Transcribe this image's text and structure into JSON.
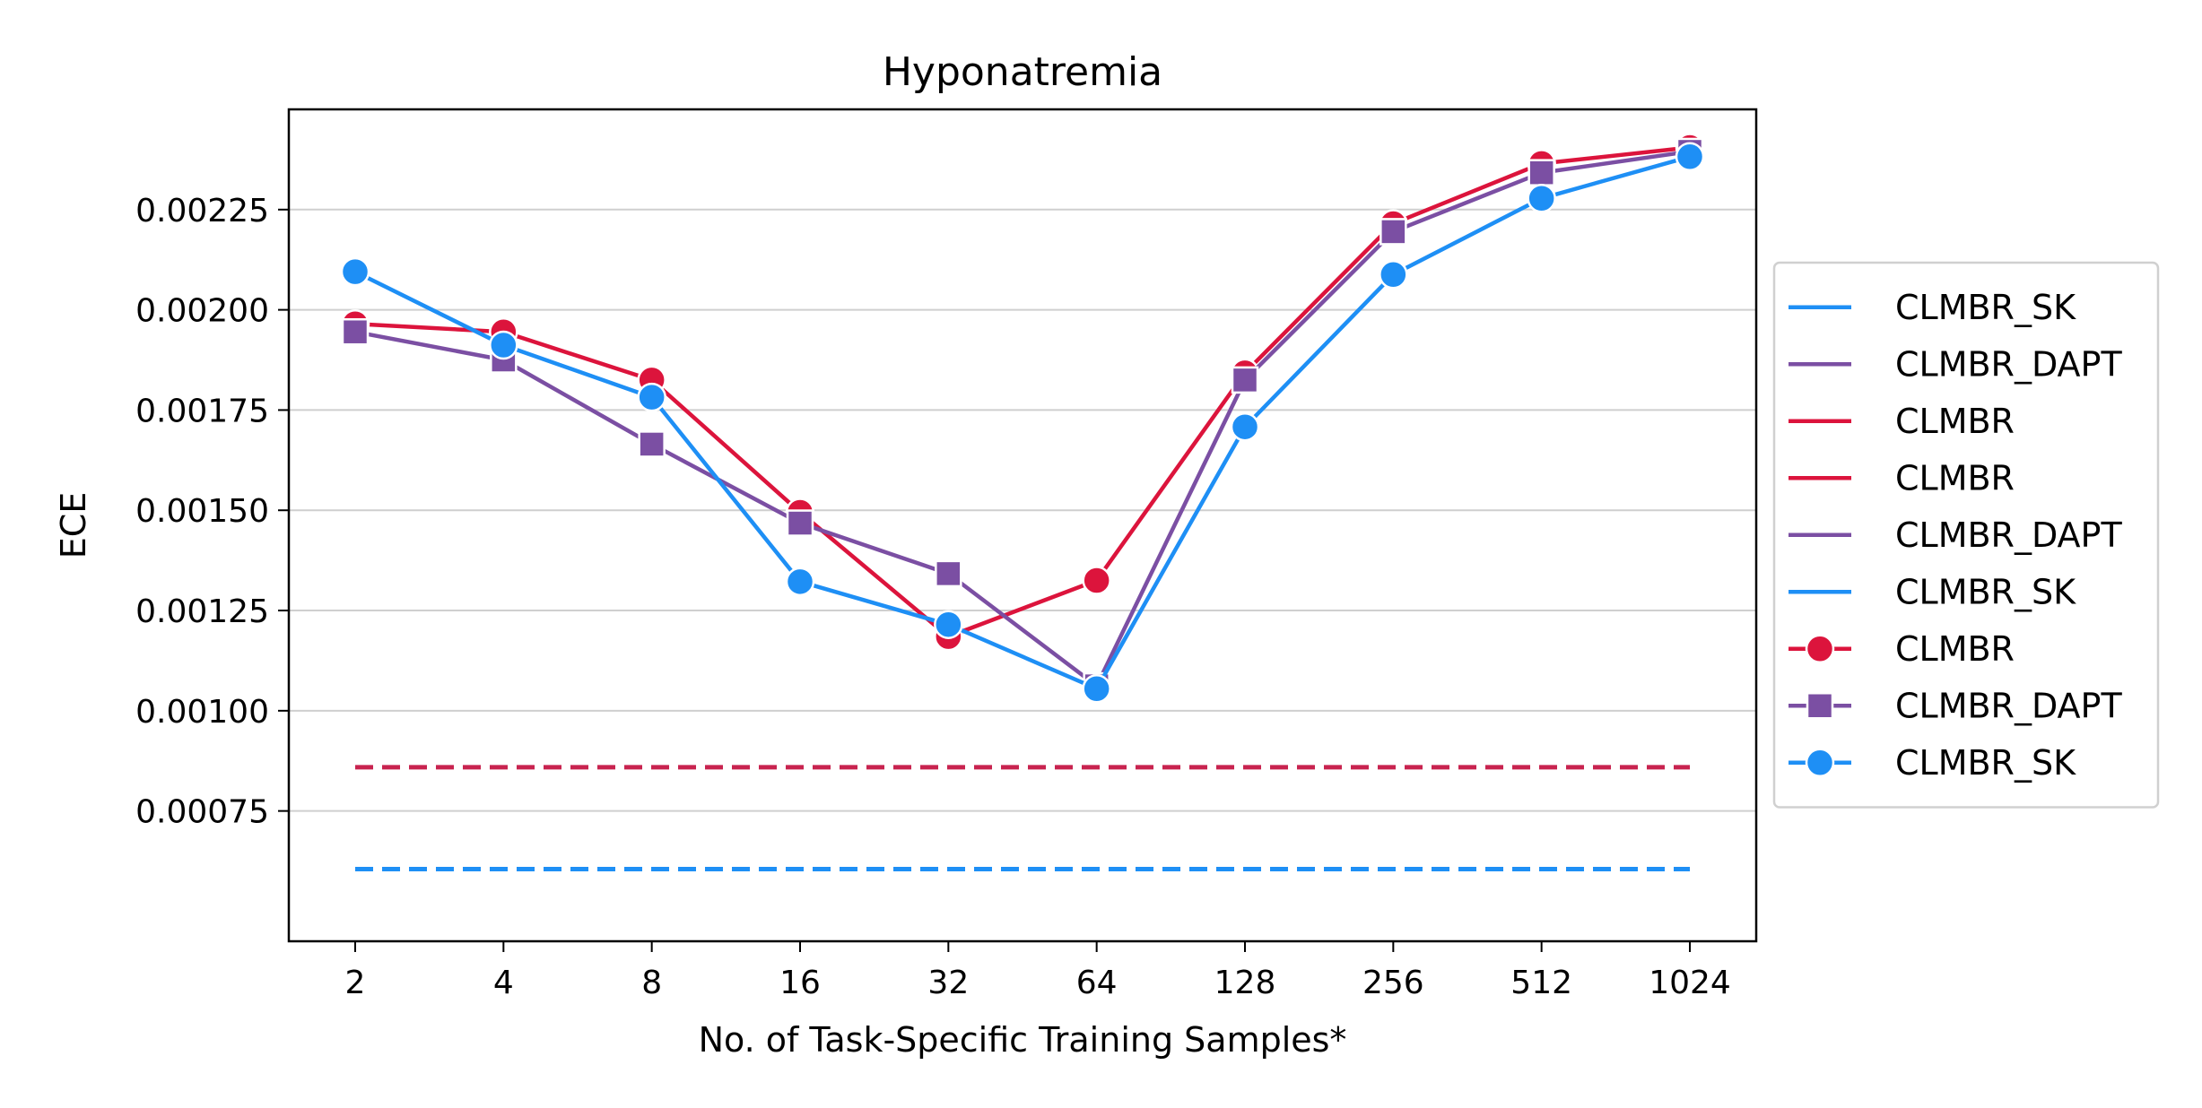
{
  "chart_data": {
    "type": "line",
    "title": "Hyponatremia",
    "xlabel": "No. of Task-Specific Training Samples*",
    "ylabel": "ECE",
    "categories": [
      "2",
      "4",
      "8",
      "16",
      "32",
      "64",
      "128",
      "256",
      "512",
      "1024"
    ],
    "ylim": [
      0.000425,
      0.0025
    ],
    "yticks": [
      "0.00075",
      "0.00100",
      "0.00125",
      "0.00150",
      "0.00175",
      "0.00200",
      "0.00225"
    ],
    "ytick_values": [
      0.00075,
      0.001,
      0.00125,
      0.0015,
      0.00175,
      0.002,
      0.00225
    ],
    "grid": "horizontal",
    "legend_position": "right, outside plot",
    "baselines": [
      {
        "series_ref": "CLMBR",
        "value": 0.000859,
        "color": "#c8234f",
        "style": "dashed"
      },
      {
        "series_ref": "CLMBR_SK",
        "value": 0.000605,
        "color": "#1e8ff5",
        "style": "dashed"
      }
    ],
    "series": [
      {
        "name": "CLMBR",
        "color": "#dc143c",
        "marker": "circle",
        "values": [
          0.001965,
          0.001945,
          0.001825,
          0.001495,
          0.001185,
          0.001325,
          0.001843,
          0.002215,
          0.002365,
          0.002405
        ]
      },
      {
        "name": "CLMBR_DAPT",
        "color": "#7b4fa3",
        "marker": "square",
        "values": [
          0.001945,
          0.001875,
          0.001665,
          0.001468,
          0.001342,
          0.001062,
          0.001825,
          0.002195,
          0.002342,
          0.002395
        ]
      },
      {
        "name": "CLMBR_SK",
        "color": "#1e8ff5",
        "marker": "circle",
        "values": [
          0.002095,
          0.001912,
          0.001782,
          0.001322,
          0.001215,
          0.001055,
          0.001708,
          0.002088,
          0.002278,
          0.002382
        ]
      }
    ],
    "legend": [
      {
        "label": "CLMBR_SK",
        "color": "#1e8ff5",
        "marker": "none"
      },
      {
        "label": "CLMBR_DAPT",
        "color": "#7b4fa3",
        "marker": "none"
      },
      {
        "label": "CLMBR",
        "color": "#dc143c",
        "marker": "none"
      },
      {
        "label": "CLMBR",
        "color": "#dc143c",
        "marker": "none"
      },
      {
        "label": "CLMBR_DAPT",
        "color": "#7b4fa3",
        "marker": "none"
      },
      {
        "label": "CLMBR_SK",
        "color": "#1e8ff5",
        "marker": "none"
      },
      {
        "label": "CLMBR",
        "color": "#dc143c",
        "marker": "circle"
      },
      {
        "label": "CLMBR_DAPT",
        "color": "#7b4fa3",
        "marker": "square"
      },
      {
        "label": "CLMBR_SK",
        "color": "#1e8ff5",
        "marker": "circle"
      }
    ]
  }
}
